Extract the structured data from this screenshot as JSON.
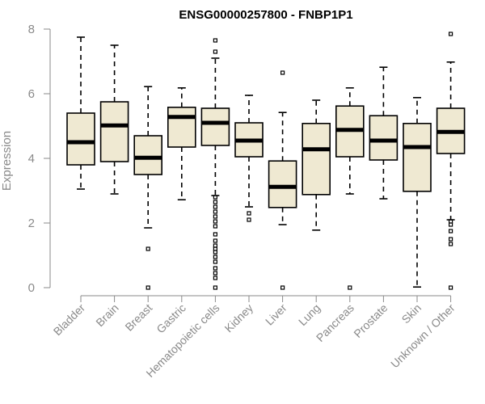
{
  "chart_data": {
    "type": "boxplot",
    "title": "ENSG00000257800 - FNBP1P1",
    "ylabel": "Expression",
    "ylim": [
      0,
      8
    ],
    "yticks": [
      0,
      2,
      4,
      6,
      8
    ],
    "categories": [
      "Bladder",
      "Brain",
      "Breast",
      "Gastric",
      "Hematopoietic cells",
      "Kidney",
      "Liver",
      "Lung",
      "Pancreas",
      "Prostate",
      "Skin",
      "Unknown / Other"
    ],
    "boxes": [
      {
        "min": 3.05,
        "q1": 3.8,
        "median": 4.5,
        "q3": 5.4,
        "max": 7.75,
        "outliers": []
      },
      {
        "min": 2.9,
        "q1": 3.9,
        "median": 5.02,
        "q3": 5.75,
        "max": 7.5,
        "outliers": []
      },
      {
        "min": 1.85,
        "q1": 3.5,
        "median": 4.02,
        "q3": 4.7,
        "max": 6.22,
        "outliers": [
          1.2,
          0.0
        ]
      },
      {
        "min": 2.72,
        "q1": 4.35,
        "median": 5.28,
        "q3": 5.58,
        "max": 6.18,
        "outliers": []
      },
      {
        "min": 2.85,
        "q1": 4.4,
        "median": 5.1,
        "q3": 5.55,
        "max": 7.1,
        "outliers": [
          7.65,
          7.3,
          2.8,
          2.65,
          2.5,
          2.35,
          2.2,
          2.05,
          1.9,
          1.65,
          1.45,
          1.3,
          1.2,
          1.1,
          0.95,
          0.8,
          0.6,
          0.45,
          0.3,
          0.0
        ]
      },
      {
        "min": 2.5,
        "q1": 4.05,
        "median": 4.55,
        "q3": 5.1,
        "max": 5.95,
        "outliers": [
          2.3,
          2.1
        ]
      },
      {
        "min": 1.95,
        "q1": 2.48,
        "median": 3.12,
        "q3": 3.92,
        "max": 5.42,
        "outliers": [
          6.65,
          0.0
        ]
      },
      {
        "min": 1.78,
        "q1": 2.88,
        "median": 4.28,
        "q3": 5.08,
        "max": 5.8,
        "outliers": []
      },
      {
        "min": 2.9,
        "q1": 4.05,
        "median": 4.88,
        "q3": 5.62,
        "max": 6.18,
        "outliers": [
          0.0
        ]
      },
      {
        "min": 2.75,
        "q1": 3.95,
        "median": 4.55,
        "q3": 5.32,
        "max": 6.82,
        "outliers": []
      },
      {
        "min": 0.02,
        "q1": 2.98,
        "median": 4.35,
        "q3": 5.08,
        "max": 5.88,
        "outliers": []
      },
      {
        "min": 2.1,
        "q1": 4.15,
        "median": 4.82,
        "q3": 5.55,
        "max": 6.98,
        "outliers": [
          7.85,
          2.05,
          1.95,
          1.75,
          1.5,
          1.35,
          0.0
        ]
      }
    ],
    "box_fill": "#efe9d2",
    "grid": false,
    "legend": "none"
  }
}
